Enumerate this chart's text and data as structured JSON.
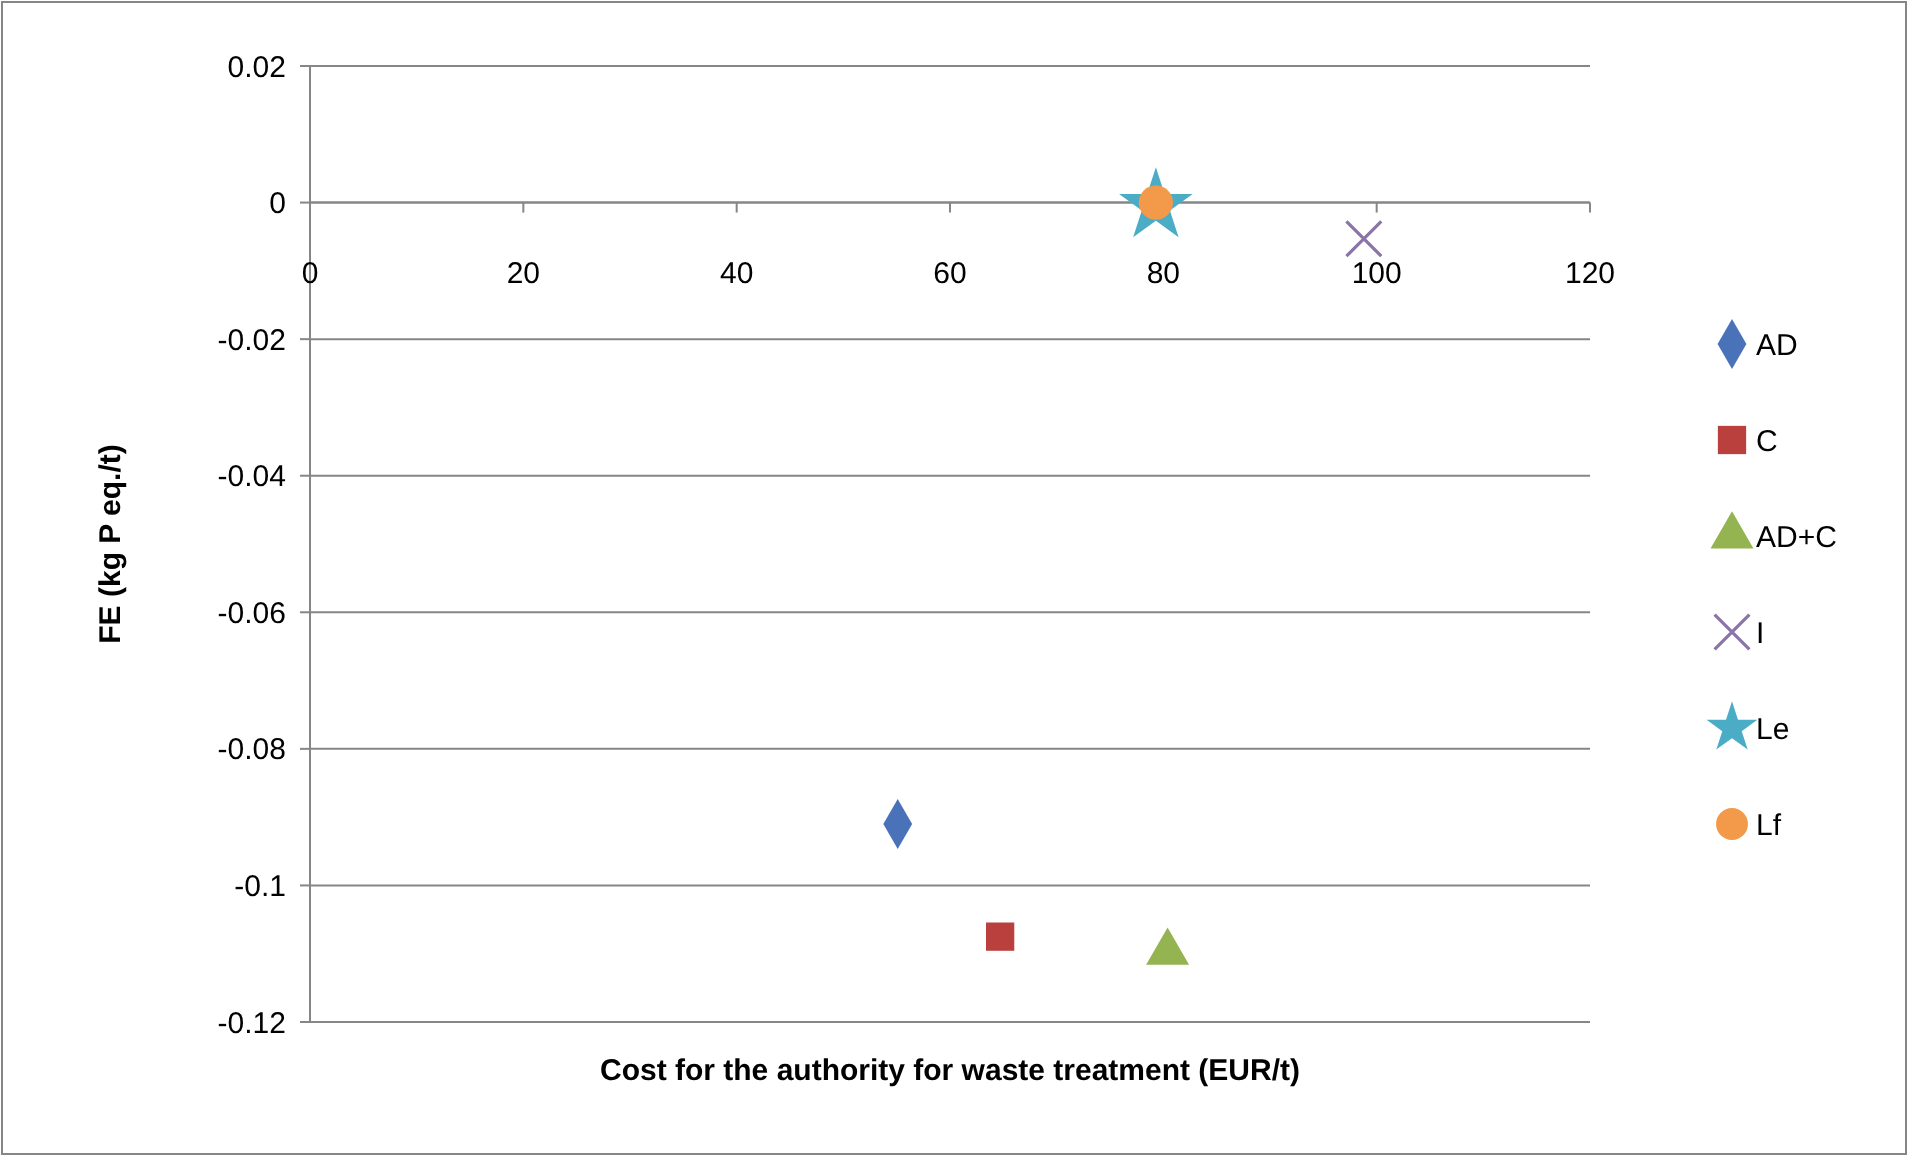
{
  "chart_data": {
    "type": "scatter",
    "xlabel": "Cost for the authority for  waste treatment (EUR/t)",
    "ylabel": "FE (kg P eq./t)",
    "xlim": [
      0,
      120
    ],
    "xticks": [
      0,
      20,
      40,
      60,
      80,
      100,
      120
    ],
    "ylim": [
      -0.12,
      0.02
    ],
    "yticks": [
      0.02,
      0,
      -0.02,
      -0.04,
      -0.06,
      -0.08,
      -0.1,
      -0.12
    ],
    "grid": "y",
    "legend": "right",
    "series": [
      {
        "name": "AD",
        "color": "#4a72b8",
        "marker": "diamond",
        "x": [
          55.1
        ],
        "values": [
          -0.091
        ]
      },
      {
        "name": "C",
        "color": "#b9403d",
        "marker": "square",
        "x": [
          64.7
        ],
        "values": [
          -0.1075
        ]
      },
      {
        "name": "AD+C",
        "color": "#94b451",
        "marker": "triangle",
        "x": [
          80.4
        ],
        "values": [
          -0.1098
        ]
      },
      {
        "name": "I",
        "color": "#8a74a8",
        "marker": "cross",
        "x": [
          98.8
        ],
        "values": [
          -0.0053
        ]
      },
      {
        "name": "Le",
        "color": "#4bacc6",
        "marker": "star",
        "x": [
          79.3
        ],
        "values": [
          -0.0005
        ]
      },
      {
        "name": "Lf",
        "color": "#f39a4a",
        "marker": "circle",
        "x": [
          79.3
        ],
        "values": [
          0
        ]
      }
    ]
  }
}
